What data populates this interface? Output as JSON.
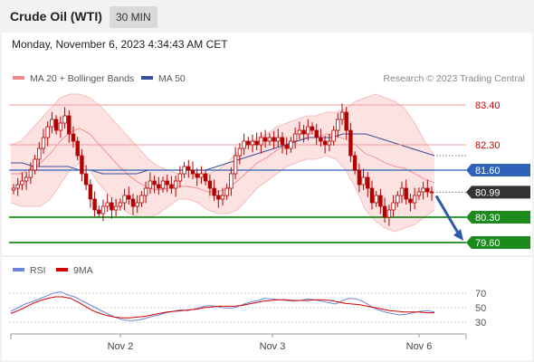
{
  "header": {
    "title": "Crude Oil (WTI)",
    "timeframe": "30 MIN"
  },
  "datetime": "Monday, November 6, 2023 4:34:43 AM CET",
  "legend": {
    "bb_label": "MA 20 + Bollinger Bands",
    "ma50_label": "MA 50",
    "copyright": "Research © 2023 Trading Central",
    "rsi_label": "RSI",
    "rsi_ma_label": "9MA"
  },
  "colors": {
    "bb": "#f08a8a",
    "bb_fill": "#fde2e2",
    "ma50": "#3a4d9a",
    "resistance": "#f29b9b",
    "pivot": "#2f62b8",
    "support": "#1c8a1c",
    "last": "#333333",
    "arrow": "#2e5aa8",
    "candle": "#b30000",
    "rsi": "#6d86d9",
    "rsi_ma": "#d40000"
  },
  "chart_data": [
    {
      "type": "candlestick",
      "title": "Crude Oil (WTI) 30 MIN",
      "y_range": [
        79.3,
        83.8
      ],
      "x_ticks": [
        "Nov 2",
        "Nov 3",
        "Nov 6"
      ],
      "levels": [
        {
          "value": 83.4,
          "label": "83.40",
          "kind": "resistance"
        },
        {
          "value": 82.3,
          "label": "82.30",
          "kind": "resistance"
        },
        {
          "value": 81.6,
          "label": "81.60",
          "kind": "pivot"
        },
        {
          "value": 80.99,
          "label": "80.99",
          "kind": "last"
        },
        {
          "value": 80.3,
          "label": "80.30",
          "kind": "support"
        },
        {
          "value": 79.6,
          "label": "79.60",
          "kind": "support"
        }
      ],
      "close": [
        81.1,
        81.2,
        81.3,
        81.4,
        81.6,
        81.9,
        82.2,
        82.5,
        82.8,
        83.0,
        82.7,
        82.9,
        83.1,
        82.6,
        82.4,
        82.0,
        81.5,
        81.2,
        80.8,
        80.5,
        80.4,
        80.6,
        80.7,
        80.5,
        80.6,
        80.7,
        80.9,
        80.8,
        80.6,
        80.7,
        80.9,
        81.1,
        81.3,
        81.2,
        81.1,
        81.3,
        81.2,
        81.1,
        81.3,
        81.5,
        81.7,
        81.6,
        81.5,
        81.4,
        81.5,
        81.3,
        81.1,
        80.9,
        80.8,
        80.9,
        81.1,
        81.5,
        82.0,
        82.2,
        82.4,
        82.3,
        82.4,
        82.3,
        82.5,
        82.4,
        82.5,
        82.4,
        82.5,
        82.3,
        82.2,
        82.4,
        82.6,
        82.7,
        82.6,
        82.8,
        82.7,
        82.5,
        82.4,
        82.3,
        82.4,
        82.7,
        83.0,
        83.2,
        82.7,
        82.0,
        81.6,
        81.2,
        81.4,
        81.1,
        80.7,
        80.9,
        80.6,
        80.3,
        80.5,
        80.7,
        80.9,
        81.1,
        80.8,
        80.7,
        80.9,
        81.0,
        81.1,
        81.0,
        80.99
      ],
      "bb_upper": [
        82.3,
        82.4,
        82.7,
        83.0,
        83.3,
        83.6,
        83.7,
        83.7,
        83.6,
        83.4,
        83.1,
        82.8,
        82.5,
        82.2,
        81.9,
        81.7,
        81.6,
        81.5,
        81.5,
        81.5,
        81.5,
        81.6,
        81.8,
        82.1,
        82.3,
        82.5,
        82.6,
        82.8,
        82.9,
        83.0,
        83.1,
        83.1,
        83.2,
        83.2,
        83.3,
        83.5,
        83.6,
        83.7,
        83.6,
        83.5,
        83.3,
        82.9,
        82.4,
        82.0
      ],
      "bb_lower": [
        80.7,
        80.6,
        80.6,
        80.6,
        80.8,
        81.2,
        81.6,
        81.8,
        81.6,
        81.2,
        80.9,
        80.6,
        80.4,
        80.3,
        80.3,
        80.4,
        80.6,
        80.8,
        80.8,
        80.7,
        80.5,
        80.4,
        80.4,
        80.5,
        80.8,
        81.1,
        81.3,
        81.5,
        81.7,
        81.8,
        81.9,
        81.9,
        82.0,
        81.9,
        81.6,
        81.1,
        80.5,
        80.2,
        80.0,
        79.9,
        80.0,
        80.1,
        80.3,
        80.5
      ],
      "ma50": [
        81.8,
        81.8,
        81.7,
        81.7,
        81.7,
        81.7,
        81.6,
        81.6,
        81.5,
        81.5,
        81.5,
        81.5,
        81.6,
        81.6,
        81.6,
        81.6,
        81.6,
        81.6,
        81.7,
        81.8,
        81.9,
        82.0,
        82.1,
        82.2,
        82.3,
        82.4,
        82.5,
        82.5,
        82.5,
        82.6,
        82.6,
        82.6,
        82.5,
        82.4,
        82.3,
        82.2,
        82.1,
        82.0
      ]
    },
    {
      "type": "line",
      "title": "RSI",
      "y_range": [
        20,
        80
      ],
      "y_ticks": [
        70,
        50,
        30
      ],
      "series": [
        {
          "name": "RSI",
          "values": [
            45,
            50,
            55,
            58,
            62,
            66,
            70,
            72,
            68,
            65,
            60,
            55,
            50,
            45,
            40,
            36,
            33,
            32,
            33,
            35,
            38,
            40,
            43,
            45,
            47,
            46,
            48,
            51,
            53,
            52,
            50,
            49,
            51,
            55,
            58,
            60,
            63,
            62,
            61,
            60,
            59,
            60,
            62,
            61,
            59,
            57,
            55,
            60,
            63,
            62,
            58,
            52,
            47,
            44,
            42,
            40,
            41,
            43,
            45,
            46,
            44
          ]
        },
        {
          "name": "9MA",
          "values": [
            42,
            46,
            51,
            56,
            60,
            63,
            65,
            65,
            63,
            58,
            52,
            46,
            42,
            39,
            37,
            36,
            36,
            37,
            38,
            40,
            42,
            44,
            45,
            46,
            47,
            48,
            50,
            51,
            52,
            52,
            52,
            53,
            55,
            57,
            59,
            60,
            61,
            61,
            60,
            60,
            60,
            61,
            61,
            60,
            58,
            56,
            55,
            54,
            52,
            50,
            48,
            46,
            45,
            44,
            44,
            44,
            43,
            43
          ]
        }
      ]
    }
  ]
}
